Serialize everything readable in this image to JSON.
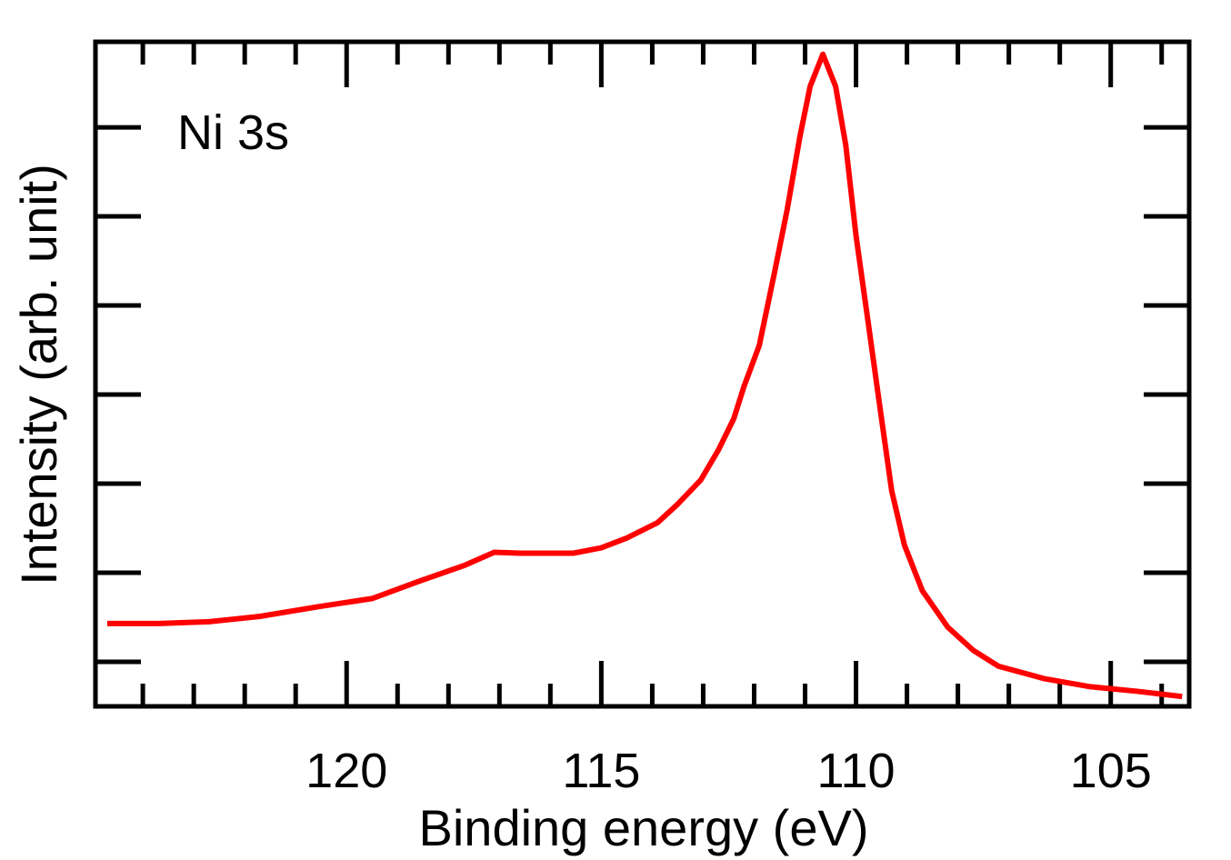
{
  "chart_data": {
    "type": "line",
    "title": "",
    "annotation": "Ni 3s",
    "xlabel": "Binding energy (eV)",
    "ylabel": "Intensity (arb. unit)",
    "xlim": [
      124.93,
      103.46
    ],
    "x_reversed": true,
    "ylim": [
      0,
      7.46
    ],
    "x_major_ticks": [
      120,
      115,
      110,
      105
    ],
    "x_tick_labels": [
      "120",
      "115",
      "110",
      "105"
    ],
    "x_minor_step": 1,
    "y_ticks": [
      0.5,
      1.5,
      2.5,
      3.5,
      4.5,
      5.5,
      6.5
    ],
    "grid": false,
    "series": [
      {
        "name": "Ni 3s",
        "color": "#ff0000",
        "x": [
          124.7,
          123.7,
          122.7,
          121.7,
          120.55,
          119.5,
          118.6,
          117.7,
          117.1,
          116.6,
          116.1,
          115.55,
          115.0,
          114.5,
          113.9,
          113.5,
          113.05,
          112.7,
          112.4,
          112.2,
          111.9,
          111.6,
          111.35,
          111.1,
          110.9,
          110.65,
          110.4,
          110.2,
          110.0,
          109.75,
          109.5,
          109.3,
          109.05,
          108.7,
          108.2,
          107.7,
          107.2,
          106.3,
          105.4,
          104.5,
          103.6
        ],
        "y": [
          0.93,
          0.93,
          0.95,
          1.01,
          1.12,
          1.21,
          1.4,
          1.58,
          1.73,
          1.72,
          1.72,
          1.72,
          1.78,
          1.89,
          2.06,
          2.27,
          2.54,
          2.88,
          3.23,
          3.59,
          4.05,
          4.87,
          5.58,
          6.4,
          6.96,
          7.32,
          6.96,
          6.3,
          5.28,
          4.26,
          3.23,
          2.42,
          1.81,
          1.3,
          0.89,
          0.63,
          0.45,
          0.31,
          0.22,
          0.17,
          0.11
        ]
      }
    ]
  }
}
